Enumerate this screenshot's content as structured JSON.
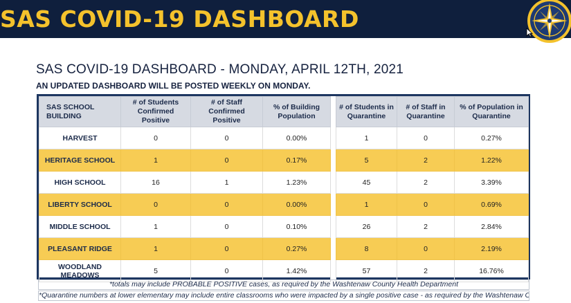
{
  "header": {
    "title": "SAS COVID-19 DASHBOARD",
    "brand_colors": {
      "banner_bg": "#0f1f3d",
      "title": "#f4c22c",
      "highlight_row": "#f7cc54"
    },
    "logo_icon": "compass-rose-seal-icon"
  },
  "dashboard": {
    "subtitle": "SAS COVID-19 DASHBOARD - MONDAY, APRIL 12TH, 2021",
    "update_note": "AN UPDATED DASHBOARD WILL BE POSTED WEEKLY ON MONDAY."
  },
  "table": {
    "headers": {
      "building": "SAS SCHOOL BUILDING",
      "students_positive": "# of Students Confirmed Positive",
      "staff_positive": "# of Staff Confirmed Positive",
      "pct_building": "% of Building Population",
      "students_quarantine": "# of Students in Quarantine",
      "staff_quarantine": "# of Staff in Quarantine",
      "pct_quarantine": "% of Population in Quarantine"
    },
    "rows": [
      {
        "building": "HARVEST",
        "students_positive": "0",
        "staff_positive": "0",
        "pct_building": "0.00%",
        "students_quarantine": "1",
        "staff_quarantine": "0",
        "pct_quarantine": "0.27%"
      },
      {
        "building": "HERITAGE SCHOOL",
        "students_positive": "1",
        "staff_positive": "0",
        "pct_building": "0.17%",
        "students_quarantine": "5",
        "staff_quarantine": "2",
        "pct_quarantine": "1.22%"
      },
      {
        "building": "HIGH SCHOOL",
        "students_positive": "16",
        "staff_positive": "1",
        "pct_building": "1.23%",
        "students_quarantine": "45",
        "staff_quarantine": "2",
        "pct_quarantine": "3.39%"
      },
      {
        "building": "LIBERTY SCHOOL",
        "students_positive": "0",
        "staff_positive": "0",
        "pct_building": "0.00%",
        "students_quarantine": "1",
        "staff_quarantine": "0",
        "pct_quarantine": "0.69%"
      },
      {
        "building": "MIDDLE SCHOOL",
        "students_positive": "1",
        "staff_positive": "0",
        "pct_building": "0.10%",
        "students_quarantine": "26",
        "staff_quarantine": "2",
        "pct_quarantine": "2.84%"
      },
      {
        "building": "PLEASANT RIDGE",
        "students_positive": "1",
        "staff_positive": "0",
        "pct_building": "0.27%",
        "students_quarantine": "8",
        "staff_quarantine": "0",
        "pct_quarantine": "2.19%"
      },
      {
        "building": "WOODLAND MEADOWS",
        "students_positive": "5",
        "staff_positive": "0",
        "pct_building": "1.42%",
        "students_quarantine": "57",
        "staff_quarantine": "2",
        "pct_quarantine": "16.76%"
      }
    ]
  },
  "footnotes": {
    "totals": "*totals may include PROBABLE POSITIVE cases, as required by the Washtenaw County Health Department",
    "quarantine": "*Quarantine numbers at lower elementary may include entire classrooms who were impacted by a single positive case - as required by the Washtenaw County Health Department"
  }
}
